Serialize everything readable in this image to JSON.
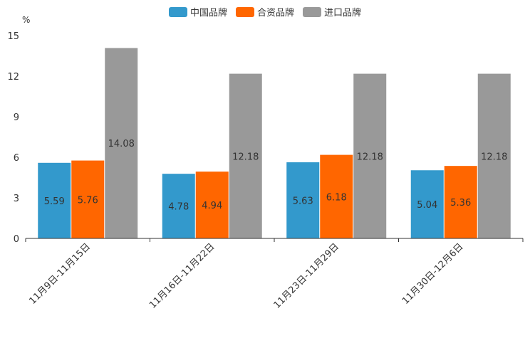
{
  "chart_data": {
    "type": "bar",
    "unit": "%",
    "categories": [
      "11月9日-11月15日",
      "11月16日-11月22日",
      "11月23日-11月29日",
      "11月30日-12月6日"
    ],
    "series": [
      {
        "name": "中国品牌",
        "color": "#3399cc",
        "values": [
          5.59,
          4.78,
          5.63,
          5.04
        ],
        "labels": [
          "5.59",
          "4.78",
          "5.63",
          "5.04"
        ]
      },
      {
        "name": "合资品牌",
        "color": "#ff6600",
        "values": [
          5.76,
          4.94,
          6.18,
          5.36
        ],
        "labels": [
          "5.76",
          "4.94",
          "6.18",
          "5.36"
        ]
      },
      {
        "name": "进口品牌",
        "color": "#999999",
        "values": [
          14.08,
          12.18,
          12.18,
          12.18
        ],
        "labels": [
          "14.08",
          "12.18",
          "12.18",
          "12.18"
        ]
      }
    ],
    "yticks": [
      0,
      3,
      6,
      9,
      12,
      15
    ],
    "ylim": [
      0,
      15
    ],
    "legend_position": "top-center",
    "grid": false
  }
}
